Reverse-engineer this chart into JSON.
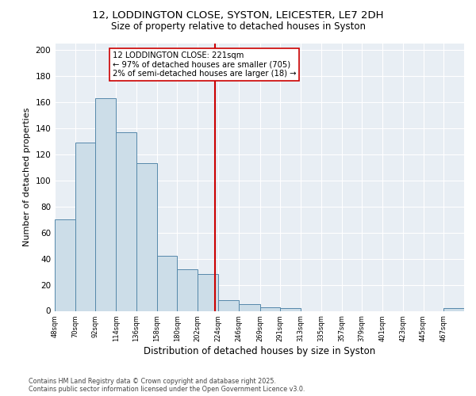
{
  "title_line1": "12, LODDINGTON CLOSE, SYSTON, LEICESTER, LE7 2DH",
  "title_line2": "Size of property relative to detached houses in Syston",
  "xlabel": "Distribution of detached houses by size in Syston",
  "ylabel": "Number of detached properties",
  "bar_color": "#ccdde8",
  "bar_edge_color": "#5588aa",
  "vline_x": 221,
  "vline_color": "#cc0000",
  "annotation_title": "12 LODDINGTON CLOSE: 221sqm",
  "annotation_line1": "← 97% of detached houses are smaller (705)",
  "annotation_line2": "2% of semi-detached houses are larger (18) →",
  "bin_edges": [
    48,
    70,
    92,
    114,
    136,
    158,
    180,
    202,
    224,
    246,
    269,
    291,
    313,
    335,
    357,
    379,
    401,
    423,
    445,
    467,
    489
  ],
  "bar_heights": [
    70,
    129,
    163,
    137,
    113,
    42,
    32,
    28,
    8,
    5,
    3,
    2,
    0,
    0,
    0,
    0,
    0,
    0,
    0,
    2
  ],
  "ylim": [
    0,
    205
  ],
  "yticks": [
    0,
    20,
    40,
    60,
    80,
    100,
    120,
    140,
    160,
    180,
    200
  ],
  "bg_color": "#e8eef4",
  "grid_color": "#ffffff",
  "footnote1": "Contains HM Land Registry data © Crown copyright and database right 2025.",
  "footnote2": "Contains public sector information licensed under the Open Government Licence v3.0."
}
